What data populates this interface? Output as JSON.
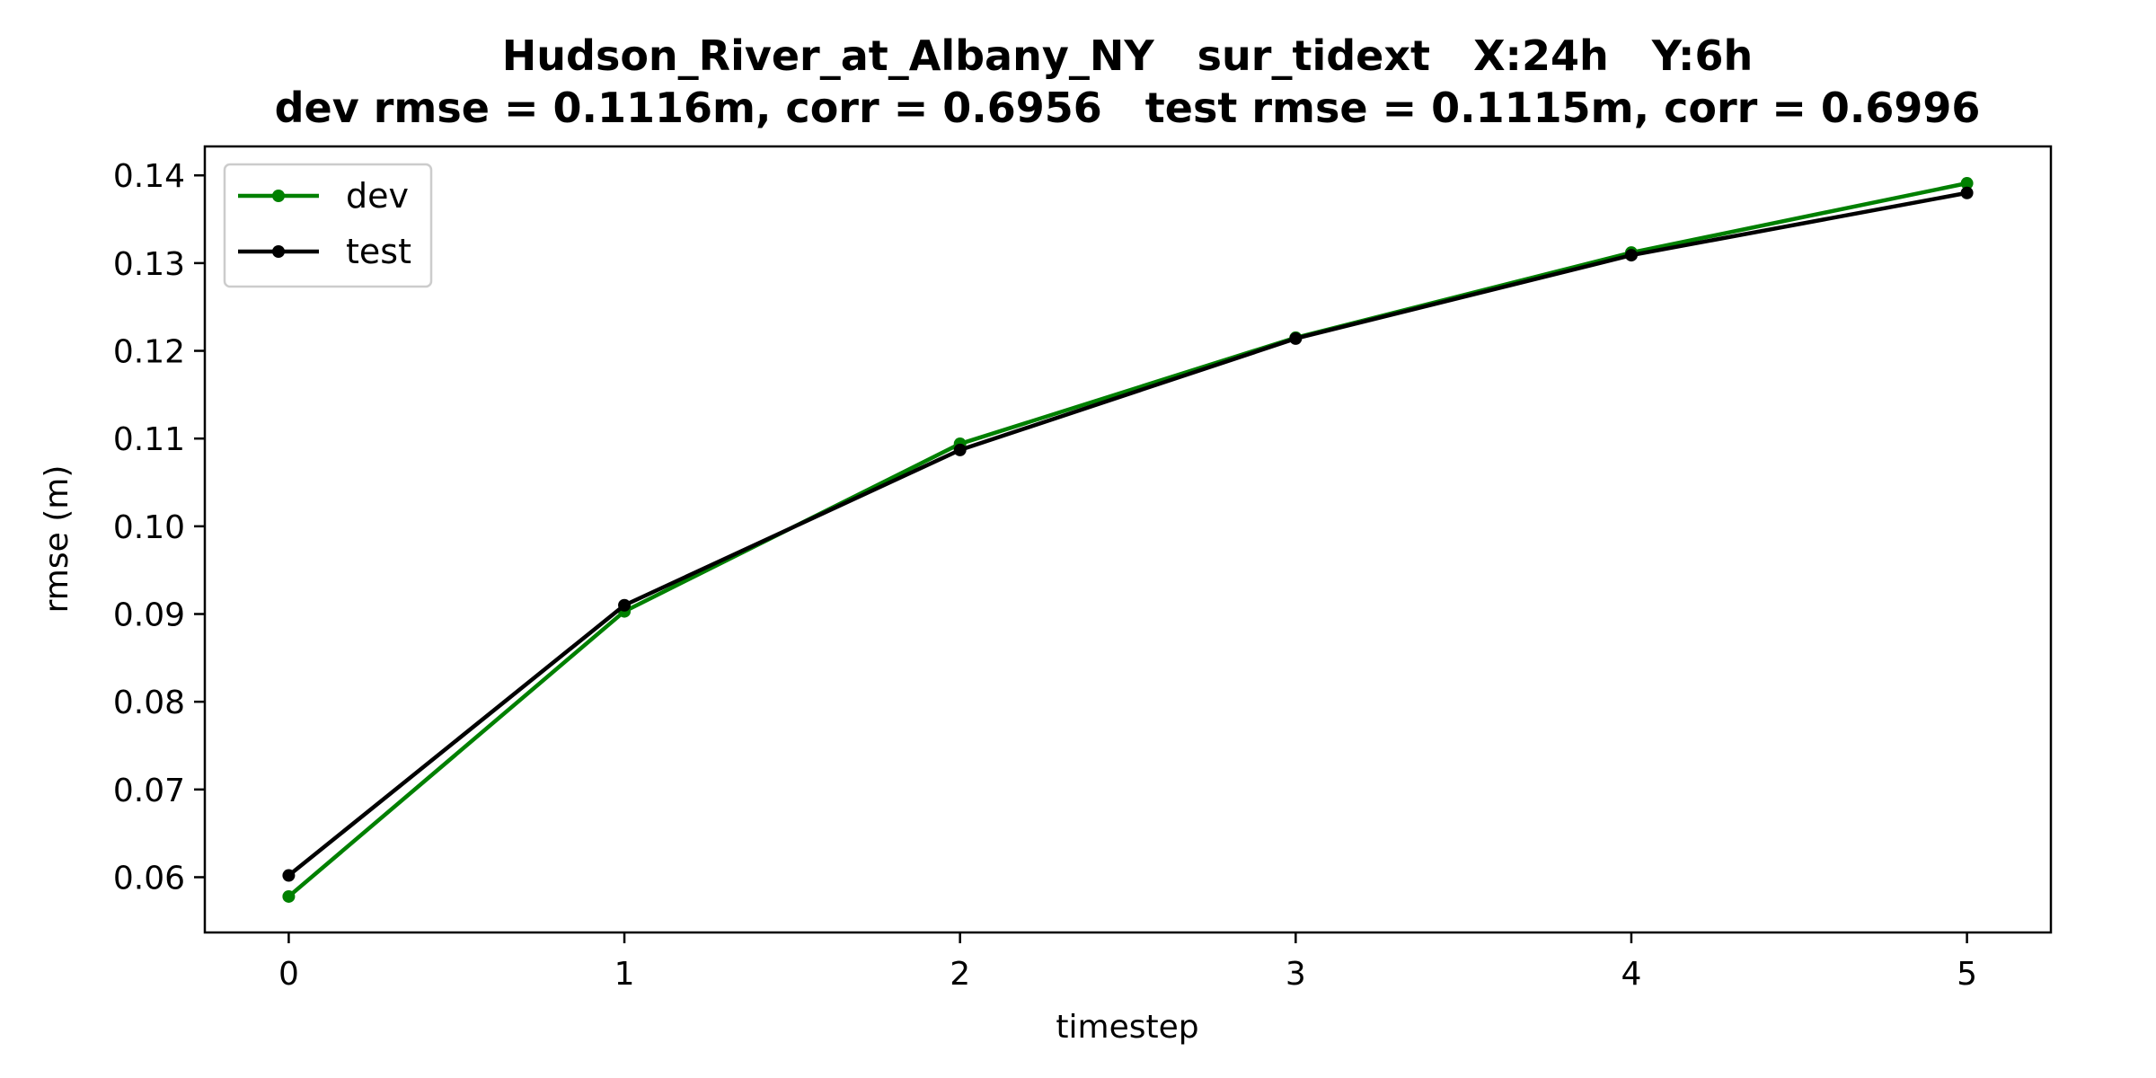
{
  "chart_data": {
    "type": "line",
    "title_line1": "Hudson_River_at_Albany_NY   sur_tidext   X:24h   Y:6h",
    "title_line2": "dev rmse = 0.1116m, corr = 0.6956   test rmse = 0.1115m, corr = 0.6996",
    "xlabel": "timestep",
    "ylabel": "rmse (m)",
    "x": [
      0,
      1,
      2,
      3,
      4,
      5
    ],
    "xlim": [
      -0.25,
      5.25
    ],
    "ylim": [
      0.0537,
      0.1433
    ],
    "xticks": [
      0,
      1,
      2,
      3,
      4,
      5
    ],
    "yticks": [
      0.06,
      0.07,
      0.08,
      0.09,
      0.1,
      0.11,
      0.12,
      0.13,
      0.14
    ],
    "ytick_labels": [
      "0.06",
      "0.07",
      "0.08",
      "0.09",
      "0.10",
      "0.11",
      "0.12",
      "0.13",
      "0.14"
    ],
    "grid": false,
    "legend_position": "upper-left",
    "series": [
      {
        "name": "dev",
        "color": "#008000",
        "values": [
          0.0578,
          0.0903,
          0.1094,
          0.1215,
          0.1312,
          0.1391
        ]
      },
      {
        "name": "test",
        "color": "#000000",
        "values": [
          0.0602,
          0.091,
          0.1087,
          0.1214,
          0.1309,
          0.138
        ]
      }
    ]
  }
}
